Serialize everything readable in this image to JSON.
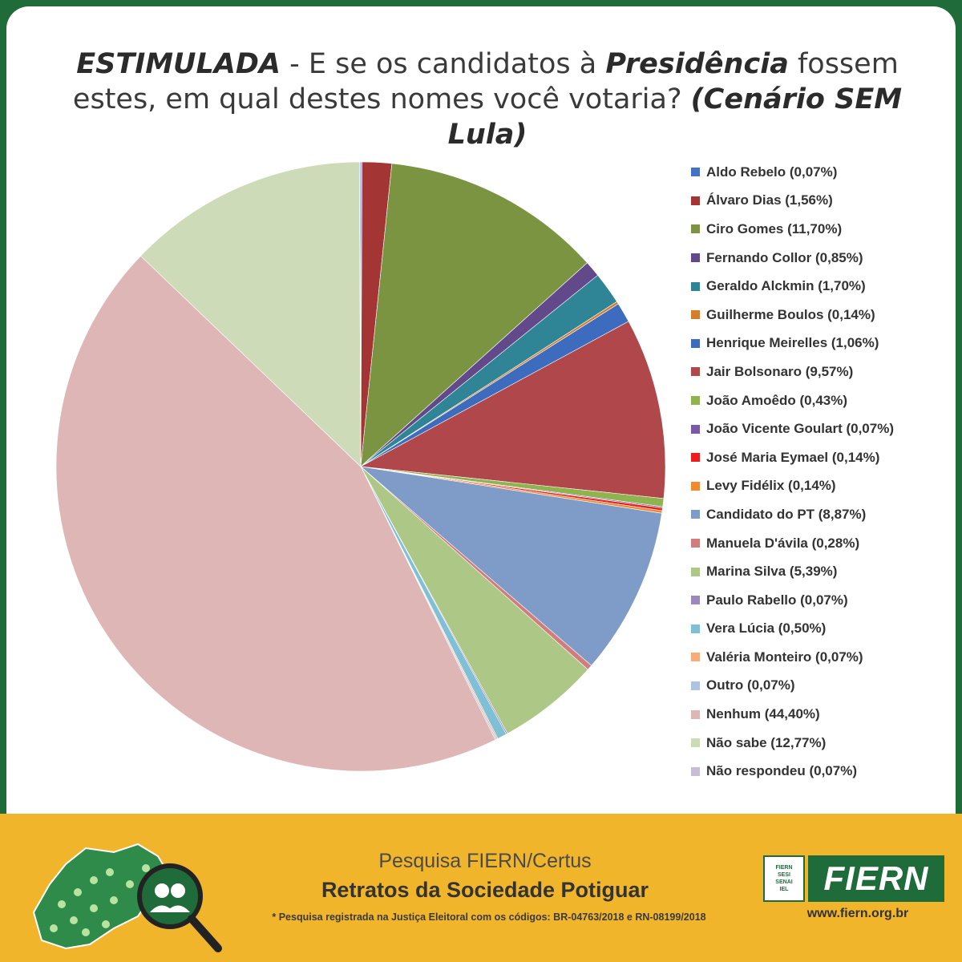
{
  "header": {
    "title_part1": "ESTIMULADA",
    "title_part2": " - E se os candidatos à ",
    "title_part3": "Presidência",
    "title_part4": " fossem estes, em qual destes nomes você votaria? ",
    "title_part5": "(Cenário SEM Lula)"
  },
  "chart_data": {
    "type": "pie",
    "start_angle_deg": 0,
    "direction": "clockwise",
    "legend_position": "right",
    "slices": [
      {
        "label": "Aldo Rebelo (0,07%)",
        "value": 0.07,
        "color": "#4472c4"
      },
      {
        "label": "Álvaro Dias (1,56%)",
        "value": 1.56,
        "color": "#a33535"
      },
      {
        "label": "Ciro Gomes (11,70%)",
        "value": 11.7,
        "color": "#7a9442"
      },
      {
        "label": "Fernando Collor (0,85%)",
        "value": 0.85,
        "color": "#624a8a"
      },
      {
        "label": "Geraldo Alckmin (1,70%)",
        "value": 1.7,
        "color": "#2f8496"
      },
      {
        "label": "Guilherme Boulos (0,14%)",
        "value": 0.14,
        "color": "#d67d2c"
      },
      {
        "label": "Henrique Meirelles (1,06%)",
        "value": 1.06,
        "color": "#3d6cbf"
      },
      {
        "label": "Jair Bolsonaro (9,57%)",
        "value": 9.57,
        "color": "#b0474a"
      },
      {
        "label": "João Amoêdo (0,43%)",
        "value": 0.43,
        "color": "#8fb34e"
      },
      {
        "label": "João Vicente Goulart (0,07%)",
        "value": 0.07,
        "color": "#7a5aa6"
      },
      {
        "label": "José Maria Eymael (0,14%)",
        "value": 0.14,
        "color": "#ee1c1c"
      },
      {
        "label": "Levy Fidélix (0,14%)",
        "value": 0.14,
        "color": "#f08a30"
      },
      {
        "label": "Candidato do PT (8,87%)",
        "value": 8.87,
        "color": "#7f9cc8"
      },
      {
        "label": "Manuela D'ávila (0,28%)",
        "value": 0.28,
        "color": "#d07d7d"
      },
      {
        "label": "Marina Silva (5,39%)",
        "value": 5.39,
        "color": "#adc787"
      },
      {
        "label": "Paulo Rabello (0,07%)",
        "value": 0.07,
        "color": "#9d88bd"
      },
      {
        "label": "Vera Lúcia (0,50%)",
        "value": 0.5,
        "color": "#7fc0d6"
      },
      {
        "label": "Valéria  Monteiro (0,07%)",
        "value": 0.07,
        "color": "#f6ad7a"
      },
      {
        "label": "Outro (0,07%)",
        "value": 0.07,
        "color": "#aec3e0"
      },
      {
        "label": "Nenhum (44,40%)",
        "value": 44.4,
        "color": "#deb6b6"
      },
      {
        "label": "Não sabe (12,77%)",
        "value": 12.77,
        "color": "#cddbb8"
      },
      {
        "label": "Não respondeu (0,07%)",
        "value": 0.07,
        "color": "#c8bcd9"
      }
    ]
  },
  "footer": {
    "line1": "Pesquisa FIERN/Certus",
    "line2": "Retratos da Sociedade Potiguar",
    "line3": "* Pesquisa registrada na Justiça Eleitoral com os códigos: BR-04763/2018 e RN-08199/2018",
    "logo_small_lines": [
      "FIERN",
      "SESI",
      "SENAI",
      "IEL"
    ],
    "logo_text": "FIERN",
    "url": "www.fiern.org.br"
  }
}
